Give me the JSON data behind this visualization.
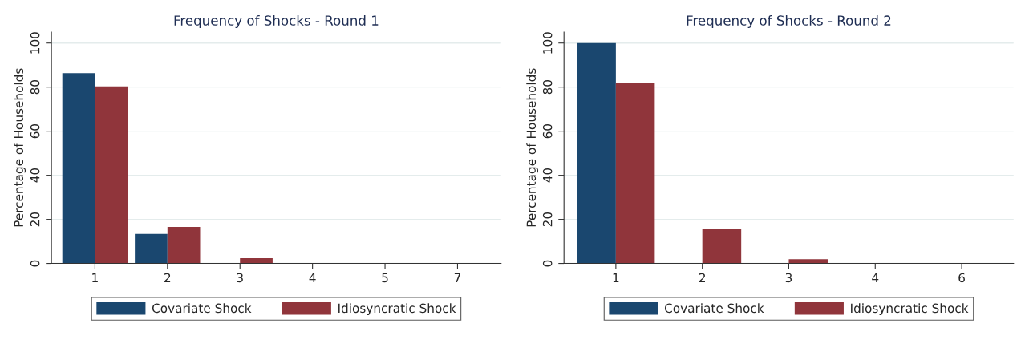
{
  "chart_data": [
    {
      "type": "bar",
      "title": "Frequency of Shocks - Round 1",
      "ylabel": "Percentage of Households",
      "categories": [
        "1",
        "2",
        "3",
        "4",
        "5",
        "7"
      ],
      "series": [
        {
          "name": "Covariate Shock",
          "color": "#1a476f",
          "values": [
            86.3,
            13.4,
            0,
            0,
            0,
            0
          ]
        },
        {
          "name": "Idiosyncratic Shock",
          "color": "#90353b",
          "values": [
            80.3,
            16.6,
            2.4,
            0.2,
            0.2,
            0.2
          ]
        }
      ],
      "ylim": [
        0,
        105
      ],
      "yticks": [
        0,
        20,
        40,
        60,
        80,
        100
      ],
      "grid": "y",
      "legend": "bottom"
    },
    {
      "type": "bar",
      "title": "Frequency of Shocks - Round 2",
      "ylabel": "Percentage of Households",
      "categories": [
        "1",
        "2",
        "3",
        "4",
        "6"
      ],
      "series": [
        {
          "name": "Covariate Shock",
          "color": "#1a476f",
          "values": [
            100,
            0,
            0,
            0,
            0
          ]
        },
        {
          "name": "Idiosyncratic Shock",
          "color": "#90353b",
          "values": [
            81.8,
            15.5,
            1.9,
            0.2,
            0.2
          ]
        }
      ],
      "ylim": [
        0,
        105
      ],
      "yticks": [
        0,
        20,
        40,
        60,
        80,
        100
      ],
      "grid": "y",
      "legend": "bottom"
    }
  ]
}
